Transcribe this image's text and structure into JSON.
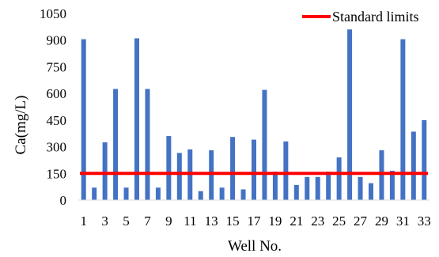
{
  "chart_data": {
    "type": "bar",
    "xlabel": "Well No.",
    "ylabel": "Ca(mg/L)",
    "ylim": [
      0,
      1050
    ],
    "yticks": [
      0,
      150,
      300,
      450,
      600,
      750,
      900,
      1050
    ],
    "categories": [
      "1",
      "2",
      "3",
      "4",
      "5",
      "6",
      "7",
      "8",
      "9",
      "10",
      "11",
      "12",
      "13",
      "14",
      "15",
      "16",
      "17",
      "18",
      "19",
      "20",
      "21",
      "22",
      "23",
      "24",
      "25",
      "26",
      "27",
      "28",
      "29",
      "30",
      "31",
      "32",
      "33"
    ],
    "xtick_labels_shown": [
      "1",
      "3",
      "5",
      "7",
      "9",
      "11",
      "13",
      "15",
      "17",
      "19",
      "21",
      "23",
      "25",
      "27",
      "29",
      "31",
      "33"
    ],
    "series": [
      {
        "values": [
          905,
          70,
          325,
          625,
          70,
          910,
          625,
          70,
          360,
          265,
          285,
          50,
          280,
          70,
          355,
          60,
          340,
          620,
          160,
          330,
          85,
          130,
          130,
          160,
          240,
          960,
          130,
          95,
          280,
          165,
          905,
          385,
          450
        ],
        "color": "#4472C4"
      }
    ],
    "reference_line": {
      "name": "Standard limits",
      "value": 150,
      "color": "#FF0000"
    },
    "grid": false,
    "legend_position": "top-right"
  }
}
